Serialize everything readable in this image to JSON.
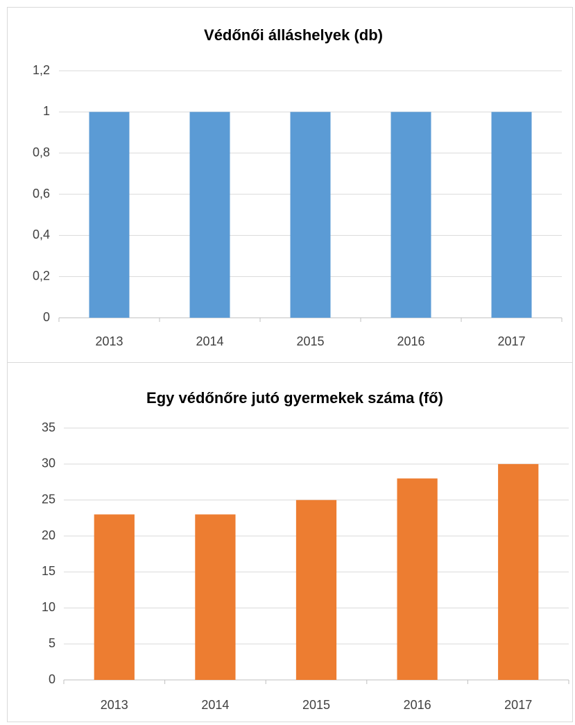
{
  "chart_data": [
    {
      "type": "bar",
      "title": "Védőnői álláshelyek (db)",
      "categories": [
        "2013",
        "2014",
        "2015",
        "2016",
        "2017"
      ],
      "values": [
        1,
        1,
        1,
        1,
        1
      ],
      "color": "#5b9bd5",
      "ylim": [
        0,
        1.2
      ],
      "yticks": [
        0,
        {
          "value": 0.2,
          "label": "0,2"
        },
        {
          "value": 0.4,
          "label": "0,4"
        },
        {
          "value": 0.6,
          "label": "0,6"
        },
        {
          "value": 0.8,
          "label": "0,8"
        },
        1,
        {
          "value": 1.2,
          "label": "1,2"
        }
      ],
      "grid": true
    },
    {
      "type": "bar",
      "title": "Egy védőnőre jutó gyermekek száma (fő)",
      "categories": [
        "2013",
        "2014",
        "2015",
        "2016",
        "2017"
      ],
      "values": [
        23,
        23,
        25,
        28,
        30
      ],
      "color": "#ed7d31",
      "ylim": [
        0,
        35
      ],
      "yticks": [
        0,
        5,
        10,
        15,
        20,
        25,
        30,
        35
      ],
      "grid": true
    }
  ]
}
